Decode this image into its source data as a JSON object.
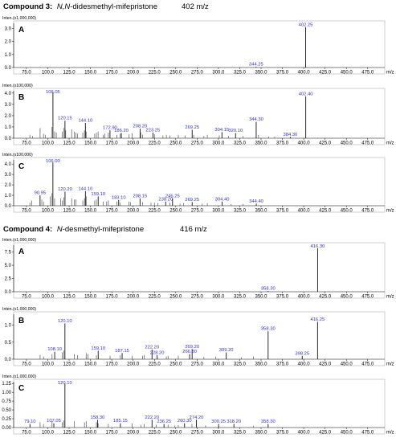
{
  "compounds": [
    {
      "label": "Compound 3:",
      "name_prefix": "N,N",
      "name_rest": "-didesmethyl-mifepristone",
      "mz": "402 m/z"
    },
    {
      "label": "Compound 4:",
      "name_prefix": "N",
      "name_rest": "-desmethyl-mifepristone",
      "mz": "416 m/z"
    }
  ],
  "chart_data": [
    {
      "type": "bar",
      "compound": 3,
      "panel": "A",
      "intensity_label": "Inten.(x1,000,000)",
      "x_unit": "m/z",
      "xlim": [
        60,
        495
      ],
      "xticks": [
        75.0,
        100.0,
        125.0,
        150.0,
        175.0,
        200.0,
        225.0,
        250.0,
        275.0,
        300.0,
        325.0,
        350.0,
        375.0,
        400.0,
        425.0,
        450.0,
        475.0
      ],
      "ylim": [
        0,
        3.4
      ],
      "yticks": [
        0.0,
        1.0,
        2.0,
        3.0
      ],
      "labeled_peaks": [
        {
          "mz": 402.25,
          "label": "402.25",
          "y": 3.1
        },
        {
          "mz": 344.25,
          "label": "344.25",
          "y": 0.06
        }
      ],
      "minor_peaks": []
    },
    {
      "type": "bar",
      "compound": 3,
      "panel": "B",
      "intensity_label": "Inten.(x100,000)",
      "x_unit": "m/z",
      "xlim": [
        60,
        495
      ],
      "xticks": [
        75.0,
        100.0,
        125.0,
        150.0,
        175.0,
        200.0,
        225.0,
        250.0,
        275.0,
        300.0,
        325.0,
        350.0,
        375.0,
        400.0,
        425.0,
        450.0,
        475.0
      ],
      "ylim": [
        0,
        4.2
      ],
      "yticks": [
        0.0,
        1.0,
        2.0,
        3.0,
        4.0
      ],
      "labeled_peaks": [
        {
          "mz": 106.05,
          "label": "106.05",
          "y": 4.1
        },
        {
          "mz": 120.15,
          "label": "120.15",
          "y": 1.55
        },
        {
          "mz": 144.1,
          "label": "144.10",
          "y": 1.35
        },
        {
          "mz": 172.9,
          "label": "172.90",
          "y": 0.7
        },
        {
          "mz": 186.2,
          "label": "186.20",
          "y": 0.45
        },
        {
          "mz": 208.2,
          "label": "208.20",
          "y": 0.85
        },
        {
          "mz": 223.25,
          "label": "223.25",
          "y": 0.5
        },
        {
          "mz": 269.25,
          "label": "269.25",
          "y": 0.75
        },
        {
          "mz": 304.15,
          "label": "304.15",
          "y": 0.55
        },
        {
          "mz": 320.1,
          "label": "320.10",
          "y": 0.45
        },
        {
          "mz": 344.3,
          "label": "344.30",
          "y": 1.45
        },
        {
          "mz": 384.3,
          "label": "384.30",
          "y": 0.12
        },
        {
          "mz": 402.4,
          "label": "402.40",
          "y": 3.7
        }
      ],
      "minor_peaks": [
        [
          79,
          0.3
        ],
        [
          82,
          0.2
        ],
        [
          91,
          0.9
        ],
        [
          95,
          0.4
        ],
        [
          97,
          0.3
        ],
        [
          105,
          1.0
        ],
        [
          108,
          0.6
        ],
        [
          110,
          0.5
        ],
        [
          117,
          0.6
        ],
        [
          119,
          0.9
        ],
        [
          121,
          0.7
        ],
        [
          128,
          0.8
        ],
        [
          131,
          0.6
        ],
        [
          133,
          0.5
        ],
        [
          135,
          0.4
        ],
        [
          141,
          0.5
        ],
        [
          143,
          0.7
        ],
        [
          145,
          0.6
        ],
        [
          155,
          0.4
        ],
        [
          157,
          0.5
        ],
        [
          159,
          0.6
        ],
        [
          165,
          0.3
        ],
        [
          167,
          0.4
        ],
        [
          171,
          0.5
        ],
        [
          181,
          0.3
        ],
        [
          185,
          0.4
        ],
        [
          195,
          0.35
        ],
        [
          199,
          0.45
        ],
        [
          209,
          0.5
        ],
        [
          211,
          0.3
        ],
        [
          225,
          0.35
        ],
        [
          235,
          0.25
        ],
        [
          239,
          0.3
        ],
        [
          243,
          0.25
        ],
        [
          253,
          0.3
        ],
        [
          261,
          0.25
        ],
        [
          271,
          0.3
        ],
        [
          283,
          0.2
        ],
        [
          287,
          0.3
        ],
        [
          301,
          0.25
        ],
        [
          312,
          0.2
        ],
        [
          329,
          0.2
        ],
        [
          347,
          0.3
        ],
        [
          359,
          0.15
        ],
        [
          366,
          0.15
        ]
      ]
    },
    {
      "type": "bar",
      "compound": 3,
      "panel": "C",
      "intensity_label": "Inten.(x100,000)",
      "x_unit": "m/z",
      "xlim": [
        60,
        495
      ],
      "xticks": [
        75.0,
        100.0,
        125.0,
        150.0,
        175.0,
        200.0,
        225.0,
        250.0,
        275.0,
        300.0,
        325.0,
        350.0,
        375.0,
        400.0,
        425.0,
        450.0,
        475.0
      ],
      "ylim": [
        0,
        4.4
      ],
      "yticks": [
        0.0,
        1.0,
        2.0,
        3.0,
        4.0
      ],
      "labeled_peaks": [
        {
          "mz": 106.0,
          "label": "106.00",
          "y": 4.15
        },
        {
          "mz": 90.95,
          "label": "90.95",
          "y": 1.0
        },
        {
          "mz": 120.2,
          "label": "120.20",
          "y": 1.35
        },
        {
          "mz": 144.1,
          "label": "144.10",
          "y": 1.4
        },
        {
          "mz": 159.1,
          "label": "159.10",
          "y": 0.9
        },
        {
          "mz": 183.1,
          "label": "183.10",
          "y": 0.55
        },
        {
          "mz": 208.15,
          "label": "208.15",
          "y": 0.7
        },
        {
          "mz": 238.2,
          "label": "238.20",
          "y": 0.4
        },
        {
          "mz": 246.25,
          "label": "246.25",
          "y": 0.7
        },
        {
          "mz": 269.25,
          "label": "269.25",
          "y": 0.35
        },
        {
          "mz": 304.4,
          "label": "304.40",
          "y": 0.4
        },
        {
          "mz": 344.4,
          "label": "344.40",
          "y": 0.2
        }
      ],
      "minor_peaks": [
        [
          79,
          0.3
        ],
        [
          81,
          0.5
        ],
        [
          93,
          0.6
        ],
        [
          95,
          0.4
        ],
        [
          103,
          0.9
        ],
        [
          105,
          1.2
        ],
        [
          108,
          0.7
        ],
        [
          115,
          0.7
        ],
        [
          117,
          0.5
        ],
        [
          119,
          0.8
        ],
        [
          128,
          0.7
        ],
        [
          131,
          0.6
        ],
        [
          133,
          0.6
        ],
        [
          141,
          0.5
        ],
        [
          143,
          0.7
        ],
        [
          145,
          0.9
        ],
        [
          155,
          0.5
        ],
        [
          157,
          0.6
        ],
        [
          165,
          0.4
        ],
        [
          169,
          0.4
        ],
        [
          171,
          0.5
        ],
        [
          181,
          0.4
        ],
        [
          185,
          0.3
        ],
        [
          195,
          0.4
        ],
        [
          197,
          0.35
        ],
        [
          211,
          0.35
        ],
        [
          221,
          0.3
        ],
        [
          225,
          0.3
        ],
        [
          229,
          0.25
        ],
        [
          243,
          0.3
        ],
        [
          255,
          0.2
        ],
        [
          259,
          0.25
        ],
        [
          281,
          0.2
        ],
        [
          287,
          0.25
        ],
        [
          315,
          0.15
        ],
        [
          329,
          0.15
        ]
      ]
    },
    {
      "type": "bar",
      "compound": 4,
      "panel": "A",
      "intensity_label": "Inten.(x1,000,000)",
      "x_unit": "m/z",
      "xlim": [
        60,
        495
      ],
      "xticks": [
        75.0,
        100.0,
        125.0,
        150.0,
        175.0,
        200.0,
        225.0,
        250.0,
        275.0,
        300.0,
        325.0,
        350.0,
        375.0,
        400.0,
        425.0,
        450.0,
        475.0
      ],
      "ylim": [
        0,
        8.8
      ],
      "yticks": [
        0.0,
        2.5,
        5.0,
        7.5
      ],
      "labeled_peaks": [
        {
          "mz": 416.3,
          "label": "416.30",
          "y": 8.2
        },
        {
          "mz": 358.3,
          "label": "358.30",
          "y": 0.15
        }
      ],
      "minor_peaks": []
    },
    {
      "type": "bar",
      "compound": 4,
      "panel": "B",
      "intensity_label": "Inten.(x1,000,000)",
      "x_unit": "m/z",
      "xlim": [
        60,
        495
      ],
      "xticks": [
        75.0,
        100.0,
        125.0,
        150.0,
        175.0,
        200.0,
        225.0,
        250.0,
        275.0,
        300.0,
        325.0,
        350.0,
        375.0,
        400.0,
        425.0,
        450.0,
        475.0
      ],
      "ylim": [
        0,
        1.32
      ],
      "yticks": [
        0.0,
        0.5,
        1.0
      ],
      "labeled_peaks": [
        {
          "mz": 120.1,
          "label": "120.10",
          "y": 1.05
        },
        {
          "mz": 108.1,
          "label": "108.10",
          "y": 0.22
        },
        {
          "mz": 159.1,
          "label": "159.10",
          "y": 0.25
        },
        {
          "mz": 187.15,
          "label": "187.15",
          "y": 0.18
        },
        {
          "mz": 222.2,
          "label": "222.20",
          "y": 0.28
        },
        {
          "mz": 228.2,
          "label": "228.20",
          "y": 0.12
        },
        {
          "mz": 269.2,
          "label": "269.20",
          "y": 0.3
        },
        {
          "mz": 266.3,
          "label": "266.30",
          "y": 0.15
        },
        {
          "mz": 309.2,
          "label": "309.20",
          "y": 0.2
        },
        {
          "mz": 358.3,
          "label": "358.30",
          "y": 0.82
        },
        {
          "mz": 398.25,
          "label": "398.25",
          "y": 0.1
        },
        {
          "mz": 416.25,
          "label": "416.25",
          "y": 1.1
        }
      ],
      "minor_peaks": [
        [
          91,
          0.12
        ],
        [
          95,
          0.08
        ],
        [
          105,
          0.15
        ],
        [
          117,
          0.2
        ],
        [
          119,
          0.25
        ],
        [
          131,
          0.15
        ],
        [
          135,
          0.12
        ],
        [
          145,
          0.18
        ],
        [
          147,
          0.15
        ],
        [
          157,
          0.12
        ],
        [
          173,
          0.1
        ],
        [
          185,
          0.12
        ],
        [
          199,
          0.1
        ],
        [
          211,
          0.1
        ],
        [
          213,
          0.12
        ],
        [
          239,
          0.08
        ],
        [
          241,
          0.1
        ],
        [
          253,
          0.1
        ],
        [
          283,
          0.07
        ],
        [
          297,
          0.08
        ],
        [
          327,
          0.06
        ],
        [
          341,
          0.08
        ]
      ]
    },
    {
      "type": "bar",
      "compound": 4,
      "panel": "C",
      "intensity_label": "Inten.(x1,000,000)",
      "x_unit": "m/z",
      "xlim": [
        60,
        495
      ],
      "xticks": [
        75.0,
        100.0,
        125.0,
        150.0,
        175.0,
        200.0,
        225.0,
        250.0,
        275.0,
        300.0,
        325.0,
        350.0,
        375.0,
        400.0,
        425.0,
        450.0,
        475.0
      ],
      "ylim": [
        0,
        1.3
      ],
      "yticks": [
        0.0,
        0.25,
        0.5,
        0.75,
        1.0,
        1.25
      ],
      "labeled_peaks": [
        {
          "mz": 120.1,
          "label": "120.10",
          "y": 1.25
        },
        {
          "mz": 79.1,
          "label": "79.10",
          "y": 0.1
        },
        {
          "mz": 107.05,
          "label": "107.05",
          "y": 0.12
        },
        {
          "mz": 158.3,
          "label": "158.30",
          "y": 0.22
        },
        {
          "mz": 185.15,
          "label": "185.15",
          "y": 0.12
        },
        {
          "mz": 222.2,
          "label": "222.20",
          "y": 0.22
        },
        {
          "mz": 236.25,
          "label": "236.25",
          "y": 0.1
        },
        {
          "mz": 260.3,
          "label": "260.30",
          "y": 0.12
        },
        {
          "mz": 274.2,
          "label": "274.20",
          "y": 0.22
        },
        {
          "mz": 300.25,
          "label": "300.25",
          "y": 0.1
        },
        {
          "mz": 318.2,
          "label": "318.20",
          "y": 0.1
        },
        {
          "mz": 358.3,
          "label": "358.30",
          "y": 0.1
        }
      ],
      "minor_peaks": [
        [
          91,
          0.15
        ],
        [
          95,
          0.1
        ],
        [
          105,
          0.18
        ],
        [
          117,
          0.15
        ],
        [
          119,
          0.2
        ],
        [
          131,
          0.18
        ],
        [
          143,
          0.15
        ],
        [
          145,
          0.18
        ],
        [
          157,
          0.15
        ],
        [
          159,
          0.12
        ],
        [
          171,
          0.1
        ],
        [
          199,
          0.12
        ],
        [
          209,
          0.08
        ],
        [
          213,
          0.1
        ],
        [
          227,
          0.08
        ],
        [
          241,
          0.08
        ],
        [
          249,
          0.06
        ],
        [
          253,
          0.07
        ],
        [
          269,
          0.1
        ],
        [
          285,
          0.06
        ],
        [
          341,
          0.05
        ]
      ]
    }
  ],
  "layout_hint": "six stacked mass spectra"
}
